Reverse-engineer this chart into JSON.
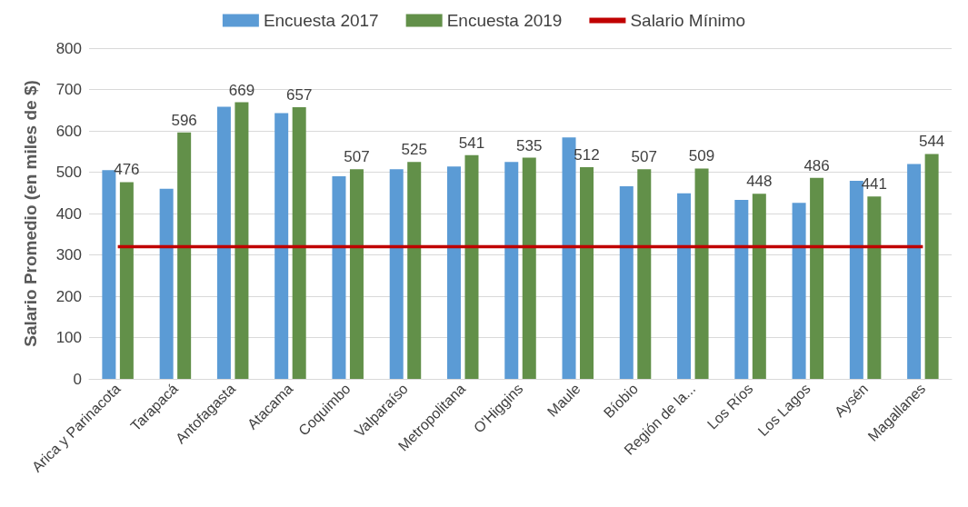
{
  "chart_data": {
    "type": "bar",
    "ylabel": "Salario Promedio (en miles de $)",
    "categories": [
      "Arica y Parinacota",
      "Tarapacá",
      "Antofagasta",
      "Atacama",
      "Coquimbo",
      "Valparaíso",
      "Metropolitana",
      "O'Higgins",
      "Maule",
      "Bíobio",
      "Región de la...",
      "Los Ríos",
      "Los Lagos",
      "Aysén",
      "Magallanes"
    ],
    "series": [
      {
        "name": "Encuesta 2017",
        "color": "#5b9bd5",
        "values": [
          505,
          460,
          658,
          643,
          490,
          507,
          514,
          525,
          584,
          466,
          449,
          433,
          426,
          479,
          520
        ]
      },
      {
        "name": "Encuesta 2019",
        "color": "#629049",
        "values": [
          476,
          596,
          669,
          657,
          507,
          525,
          541,
          535,
          512,
          507,
          509,
          448,
          486,
          441,
          544
        ],
        "value_labels": [
          "476",
          "596",
          "669",
          "657",
          "507",
          "525",
          "541",
          "535",
          "512",
          "507",
          "509",
          "448",
          "486",
          "441",
          "544"
        ]
      },
      {
        "name": "Salario Mínimo",
        "type": "line",
        "color": "#c00000",
        "values": [
          320,
          320,
          320,
          320,
          320,
          320,
          320,
          320,
          320,
          320,
          320,
          320,
          320,
          320,
          320
        ]
      }
    ],
    "ylim": [
      0,
      800
    ],
    "yticks": [
      0,
      100,
      200,
      300,
      400,
      500,
      600,
      700,
      800
    ],
    "grid": "y",
    "legend": "top",
    "marker": "none"
  }
}
